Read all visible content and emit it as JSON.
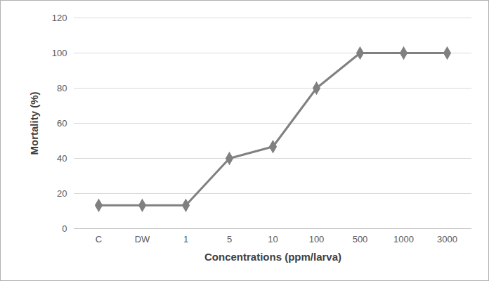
{
  "chart_data": {
    "type": "line",
    "x_label": "Concentrations (ppm/larva)",
    "y_label": "Mortality (%)",
    "categories": [
      "C",
      "DW",
      "1",
      "5",
      "10",
      "100",
      "500",
      "1000",
      "3000"
    ],
    "values": [
      13.3,
      13.3,
      13.3,
      40,
      46.7,
      80,
      100,
      100,
      100
    ],
    "color": "#808080",
    "marker": "diamond",
    "line_style": "solid",
    "ylim": [
      0,
      120
    ],
    "yticks": [
      0,
      20,
      40,
      60,
      80,
      100,
      120
    ],
    "grid": true
  }
}
